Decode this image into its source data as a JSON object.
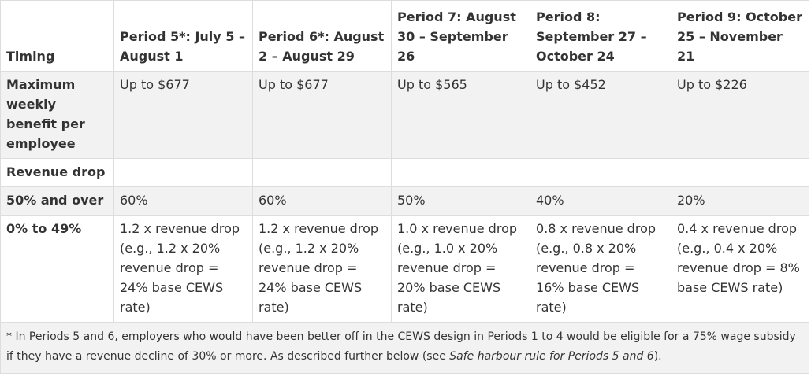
{
  "header": {
    "timing": "Timing",
    "periods": [
      "Period 5*: July 5 – August 1",
      "Period 6*: August 2 – August 29",
      "Period 7: August 30 – September 26",
      "Period 8: September 27 – October 24",
      "Period 9: October 25 – November 21"
    ]
  },
  "rows": {
    "max_benefit": {
      "label": "Maximum weekly benefit per employee",
      "values": [
        "Up to $677",
        "Up to $677",
        "Up to $565",
        "Up to $452",
        "Up to $226"
      ]
    },
    "revenue_drop": {
      "label": "Revenue drop"
    },
    "fifty_over": {
      "label": "50% and over",
      "values": [
        "60%",
        "60%",
        "50%",
        "40%",
        "20%"
      ]
    },
    "zero_49": {
      "label": "0% to 49%",
      "values": [
        "1.2 x revenue drop (e.g., 1.2 x 20% revenue drop = 24% base CEWS rate)",
        "1.2 x revenue drop (e.g., 1.2 x 20% revenue drop = 24% base CEWS rate)",
        "1.0 x revenue drop (e.g., 1.0 x 20% revenue drop = 20% base CEWS rate)",
        "0.8 x revenue drop (e.g., 0.8 x 20% revenue drop  = 16% base CEWS rate)",
        "0.4 x revenue drop (e.g., 0.4 x 20% revenue drop = 8% base CEWS rate)"
      ]
    }
  },
  "footnote": {
    "text": "* In Periods 5 and 6, employers who would have been better off in the CEWS design in Periods 1 to 4 would be eligible for a 75% wage subsidy if they have a revenue decline of 30% or more. As described further below (see ",
    "emphasis": "Safe harbour rule for Periods 5 and 6",
    "end": ")."
  }
}
